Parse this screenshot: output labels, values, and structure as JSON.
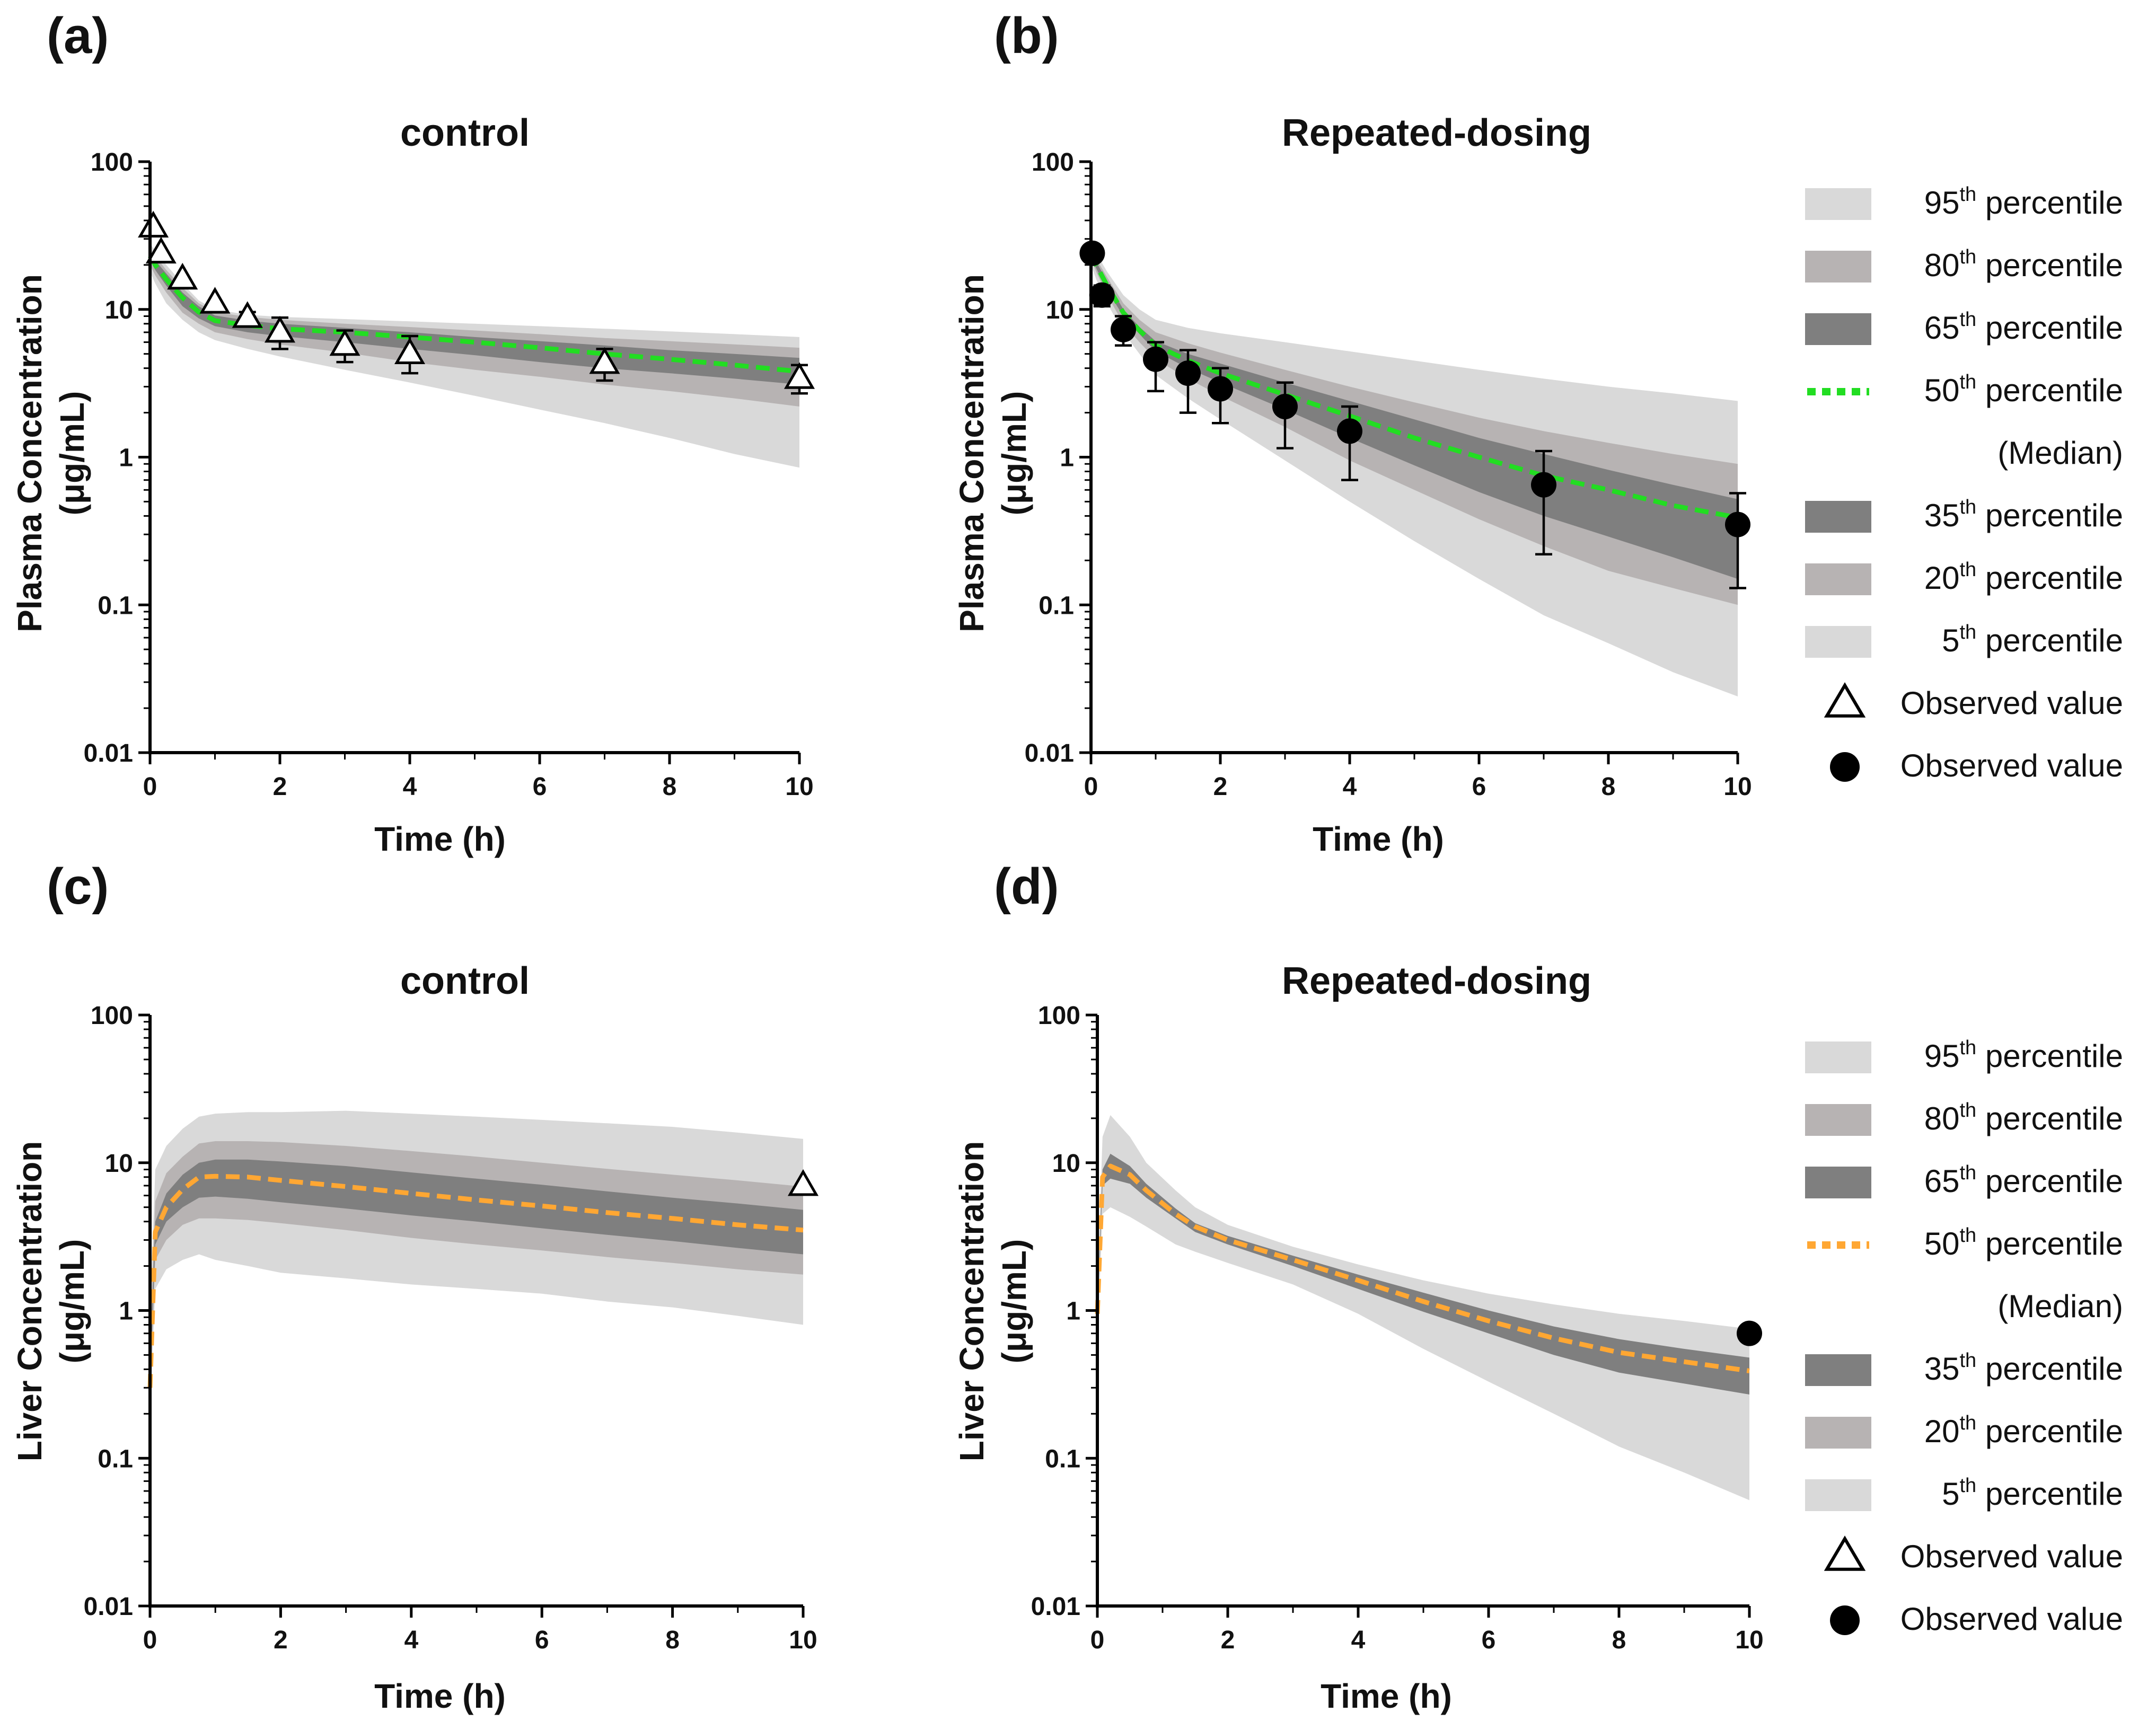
{
  "figure": {
    "y_tick_labels": [
      "100",
      "10",
      "1",
      "0.1",
      "0.01"
    ],
    "legend": {
      "items": [
        {
          "prefix": "95",
          "sup": "th",
          "label": "percentile",
          "swatch": "band",
          "color": "#d9d9d9"
        },
        {
          "prefix": "80",
          "sup": "th",
          "label": "percentile",
          "swatch": "band",
          "color": "#b7b3b3"
        },
        {
          "prefix": "65",
          "sup": "th",
          "label": "percentile",
          "swatch": "band",
          "color": "#7f7f7f"
        },
        {
          "prefix": "50",
          "sup": "th",
          "label": "percentile",
          "swatch": "median"
        },
        {
          "prefix": "",
          "sup": "",
          "label": "(Median)",
          "swatch": "none"
        },
        {
          "prefix": "35",
          "sup": "th",
          "label": "percentile",
          "swatch": "band",
          "color": "#7f7f7f"
        },
        {
          "prefix": "20",
          "sup": "th",
          "label": "percentile",
          "swatch": "band",
          "color": "#b7b3b3"
        },
        {
          "prefix": "5",
          "sup": "th",
          "label": "percentile",
          "swatch": "band",
          "color": "#d9d9d9"
        },
        {
          "prefix": "",
          "sup": "",
          "label": "Observed value",
          "swatch": "triangle"
        },
        {
          "prefix": "",
          "sup": "",
          "label": "Observed value",
          "swatch": "circle"
        }
      ]
    }
  },
  "chart_data": [
    {
      "panel": "(a)",
      "type": "area",
      "title": "control",
      "xlabel": "Time (h)",
      "ylabel": "Plasma Concentration",
      "ylabel_unit": "(μg/mL)",
      "xlim": [
        0,
        10
      ],
      "ylim": [
        0.01,
        100
      ],
      "yscale": "log",
      "xticks": [
        0,
        2,
        4,
        6,
        8,
        10
      ],
      "median_color": "#22dd22",
      "t": [
        0,
        0.08,
        0.25,
        0.5,
        0.75,
        1,
        1.5,
        2,
        3,
        4,
        5,
        6,
        7,
        8,
        9,
        10
      ],
      "bands": [
        {
          "name": "95th–5th percentile",
          "color": "#d9d9d9",
          "upper": [
            28,
            25,
            20,
            15,
            11.5,
            10,
            9.2,
            8.9,
            8.6,
            8.3,
            8,
            7.7,
            7.4,
            7.1,
            6.8,
            6.5
          ],
          "lower": [
            18,
            15,
            11,
            8.5,
            7,
            6.2,
            5.4,
            4.8,
            3.9,
            3.2,
            2.6,
            2.1,
            1.7,
            1.35,
            1.05,
            0.85
          ]
        },
        {
          "name": "80th–20th percentile",
          "color": "#b7b3b3",
          "upper": [
            26,
            23,
            18.5,
            14,
            11,
            9.6,
            8.9,
            8.5,
            8,
            7.6,
            7.2,
            6.8,
            6.4,
            6.1,
            5.8,
            5.5
          ],
          "lower": [
            20,
            17,
            13,
            9.5,
            8,
            7,
            6.3,
            5.8,
            5.1,
            4.4,
            3.9,
            3.5,
            3.1,
            2.8,
            2.5,
            2.2
          ]
        },
        {
          "name": "65th–35th percentile",
          "color": "#7f7f7f",
          "upper": [
            24.5,
            21.5,
            17.5,
            13,
            10.5,
            9.1,
            8.4,
            8,
            7.5,
            7,
            6.5,
            6.1,
            5.7,
            5.3,
            5,
            4.7
          ],
          "lower": [
            21.5,
            18.5,
            14.5,
            10.5,
            8.7,
            7.7,
            7,
            6.6,
            6,
            5.4,
            4.9,
            4.4,
            4,
            3.7,
            3.4,
            3.1
          ]
        }
      ],
      "median": [
        23,
        20,
        16,
        12,
        9.6,
        8.4,
        7.8,
        7.4,
        7,
        6.5,
        6,
        5.5,
        5,
        4.6,
        4.2,
        3.8
      ],
      "observed": {
        "marker": "triangle",
        "x": [
          0.05,
          0.17,
          0.5,
          1,
          1.5,
          2,
          3,
          4,
          7,
          10
        ],
        "y": [
          36,
          24,
          16,
          11,
          8.8,
          7,
          5.7,
          5,
          4.3,
          3.4
        ],
        "err_upper": [
          null,
          null,
          null,
          null,
          9.6,
          8.8,
          7.2,
          6.6,
          5.4,
          4.2
        ],
        "err_lower": [
          null,
          null,
          null,
          null,
          8,
          5.4,
          4.4,
          3.7,
          3.3,
          2.7
        ]
      }
    },
    {
      "panel": "(b)",
      "type": "area",
      "title": "Repeated-dosing",
      "xlabel": "Time (h)",
      "ylabel": "Plasma Concentration",
      "ylabel_unit": "(μg/mL)",
      "xlim": [
        0,
        10
      ],
      "ylim": [
        0.01,
        100
      ],
      "yscale": "log",
      "xticks": [
        0,
        2,
        4,
        6,
        8,
        10
      ],
      "median_color": "#22dd22",
      "t": [
        0,
        0.08,
        0.25,
        0.5,
        0.75,
        1,
        1.5,
        2,
        3,
        4,
        5,
        6,
        7,
        8,
        9,
        10
      ],
      "bands": [
        {
          "name": "95th–5th percentile",
          "color": "#d9d9d9",
          "upper": [
            28,
            24,
            18,
            12.5,
            10,
            8.5,
            7.5,
            6.9,
            6,
            5.2,
            4.5,
            3.9,
            3.4,
            3,
            2.7,
            2.4
          ],
          "lower": [
            20,
            16,
            11,
            7,
            5,
            3.6,
            2.5,
            1.8,
            0.95,
            0.5,
            0.27,
            0.15,
            0.085,
            0.055,
            0.035,
            0.024
          ]
        },
        {
          "name": "80th–20th percentile",
          "color": "#b7b3b3",
          "upper": [
            26,
            22,
            16.5,
            11,
            8.5,
            7,
            5.9,
            5.1,
            3.9,
            3,
            2.35,
            1.85,
            1.5,
            1.25,
            1.05,
            0.9
          ],
          "lower": [
            22,
            18,
            12.5,
            8,
            6,
            4.6,
            3.4,
            2.6,
            1.6,
            0.95,
            0.6,
            0.38,
            0.25,
            0.17,
            0.13,
            0.1
          ]
        },
        {
          "name": "65th–35th percentile",
          "color": "#7f7f7f",
          "upper": [
            25,
            21,
            15.5,
            10,
            7.6,
            6.1,
            5,
            4.3,
            3.2,
            2.4,
            1.8,
            1.35,
            1.05,
            0.82,
            0.65,
            0.52
          ],
          "lower": [
            23,
            19,
            13.5,
            9,
            6.8,
            5.2,
            4,
            3.2,
            2.1,
            1.35,
            0.88,
            0.58,
            0.4,
            0.29,
            0.21,
            0.15
          ]
        }
      ],
      "median": [
        24,
        20,
        14.5,
        9.5,
        7.2,
        5.7,
        4.5,
        3.7,
        2.65,
        1.9,
        1.35,
        1,
        0.75,
        0.6,
        0.47,
        0.39
      ],
      "observed": {
        "marker": "circle",
        "x": [
          0.02,
          0.17,
          0.5,
          1,
          1.5,
          2,
          3,
          4,
          7,
          10
        ],
        "y": [
          24,
          12.5,
          7.3,
          4.6,
          3.7,
          2.9,
          2.2,
          1.5,
          0.65,
          0.35
        ],
        "err_upper": [
          null,
          14.5,
          9,
          6,
          5.3,
          4,
          3.2,
          2.2,
          1.1,
          0.57
        ],
        "err_lower": [
          null,
          10.5,
          5.7,
          2.8,
          2,
          1.7,
          1.15,
          0.7,
          0.22,
          0.13
        ]
      }
    },
    {
      "panel": "(c)",
      "type": "area",
      "title": "control",
      "xlabel": "Time (h)",
      "ylabel": "Liver Concentration",
      "ylabel_unit": "(μg/mL)",
      "xlim": [
        0,
        10
      ],
      "ylim": [
        0.01,
        100
      ],
      "yscale": "log",
      "xticks": [
        0,
        2,
        4,
        6,
        8,
        10
      ],
      "median_color": "#ffa733",
      "t": [
        0,
        0.08,
        0.25,
        0.5,
        0.75,
        1,
        1.5,
        2,
        3,
        4,
        5,
        6,
        7,
        8,
        9,
        10
      ],
      "bands": [
        {
          "name": "95th–5th percentile",
          "color": "#d9d9d9",
          "upper": [
            0.9,
            9,
            13,
            17,
            20.5,
            21.5,
            22,
            22,
            22.5,
            21.5,
            20.5,
            19.5,
            18.5,
            17.5,
            16,
            14.5
          ],
          "lower": [
            0.2,
            1.4,
            1.9,
            2.2,
            2.4,
            2.2,
            2,
            1.8,
            1.65,
            1.5,
            1.4,
            1.3,
            1.15,
            1.05,
            0.92,
            0.8
          ]
        },
        {
          "name": "80th–20th percentile",
          "color": "#b7b3b3",
          "upper": [
            0.6,
            5.5,
            8.5,
            11,
            13.5,
            14,
            14,
            13.8,
            13,
            12,
            11,
            10,
            9.1,
            8.3,
            7.6,
            6.9
          ],
          "lower": [
            0.25,
            2.2,
            3,
            3.8,
            4.2,
            4.2,
            4.1,
            3.9,
            3.5,
            3.1,
            2.8,
            2.55,
            2.3,
            2.1,
            1.9,
            1.75
          ]
        },
        {
          "name": "65th–35th percentile",
          "color": "#7f7f7f",
          "upper": [
            0.45,
            4,
            6.2,
            8.3,
            10,
            10.5,
            10.5,
            10.2,
            9.5,
            8.6,
            7.8,
            7.1,
            6.4,
            5.8,
            5.3,
            4.8
          ],
          "lower": [
            0.3,
            2.8,
            4,
            5,
            5.8,
            5.9,
            5.7,
            5.4,
            4.9,
            4.4,
            4,
            3.6,
            3.25,
            2.95,
            2.65,
            2.4
          ]
        }
      ],
      "median": [
        0.3,
        3.4,
        5,
        6.6,
        8,
        8.1,
        8,
        7.6,
        6.9,
        6.2,
        5.6,
        5.1,
        4.6,
        4.2,
        3.8,
        3.5
      ],
      "observed": {
        "marker": "triangle",
        "x": [
          10
        ],
        "y": [
          7
        ],
        "err_upper": [
          null
        ],
        "err_lower": [
          null
        ]
      }
    },
    {
      "panel": "(d)",
      "type": "area",
      "title": "Repeated-dosing",
      "xlabel": "Time (h)",
      "ylabel": "Liver Concentration",
      "ylabel_unit": "(μg/mL)",
      "xlim": [
        0,
        10
      ],
      "ylim": [
        0.01,
        100
      ],
      "yscale": "log",
      "xticks": [
        0,
        2,
        4,
        6,
        8,
        10
      ],
      "median_color": "#ffa733",
      "t": [
        0,
        0.08,
        0.2,
        0.5,
        0.75,
        1.2,
        1.5,
        2,
        3,
        4,
        5,
        6,
        7,
        8,
        9,
        10
      ],
      "bands": [
        {
          "name": "95th–5th percentile",
          "color": "#d9d9d9",
          "upper": [
            1.5,
            15,
            21,
            15,
            10,
            6.5,
            5,
            3.8,
            2.7,
            2.05,
            1.6,
            1.3,
            1.1,
            0.95,
            0.85,
            0.75
          ],
          "lower": [
            0.6,
            4.5,
            5,
            4.3,
            3.7,
            2.8,
            2.5,
            2.1,
            1.5,
            0.95,
            0.55,
            0.33,
            0.2,
            0.12,
            0.08,
            0.052
          ]
        },
        {
          "name": "80th–20th percentile",
          "color": "#b7b3b3",
          "upper": [
            1.2,
            10.5,
            14,
            11,
            8,
            5.2,
            4.2,
            3.4,
            2.5,
            1.9,
            1.45,
            1.15,
            0.92,
            0.78,
            0.68,
            0.6
          ]
        },
        {
          "name": "65th–35th percentile",
          "color": "#7f7f7f",
          "upper": [
            1.1,
            9,
            11.5,
            9.5,
            7.2,
            4.9,
            3.9,
            3.2,
            2.35,
            1.75,
            1.32,
            1,
            0.78,
            0.64,
            0.55,
            0.48
          ],
          "lower": [
            0.9,
            7,
            7.8,
            7.2,
            5.8,
            4.2,
            3.4,
            2.8,
            2,
            1.4,
            0.98,
            0.7,
            0.5,
            0.38,
            0.32,
            0.27
          ]
        }
      ],
      "median": [
        0.95,
        8,
        9.5,
        8.3,
        6.5,
        4.5,
        3.7,
        3,
        2.2,
        1.6,
        1.15,
        0.85,
        0.65,
        0.52,
        0.45,
        0.39
      ],
      "observed": {
        "marker": "circle",
        "x": [
          10
        ],
        "y": [
          0.7
        ],
        "err_upper": [
          null
        ],
        "err_lower": [
          null
        ]
      }
    }
  ]
}
